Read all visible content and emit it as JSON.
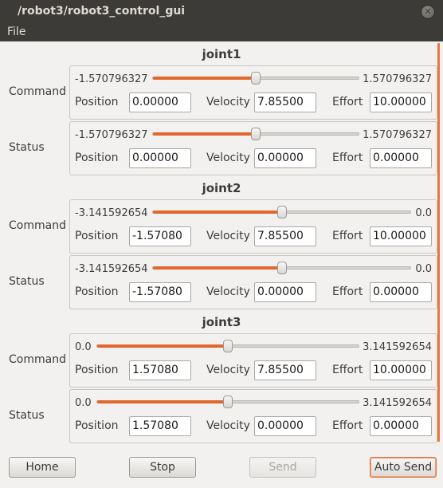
{
  "window": {
    "title": "/robot3/robot3_control_gui",
    "close_icon": "close-icon"
  },
  "menu": {
    "file": "File"
  },
  "labels": {
    "command": "Command",
    "status": "Status",
    "position": "Position",
    "velocity": "Velocity",
    "effort": "Effort"
  },
  "joints": [
    {
      "name": "joint1",
      "command": {
        "min": "-1.570796327",
        "max": "1.570796327",
        "slider_fraction": 0.5,
        "position": "0.00000",
        "velocity": "7.85500",
        "effort": "10.00000"
      },
      "status": {
        "min": "-1.570796327",
        "max": "1.570796327",
        "slider_fraction": 0.5,
        "position": "0.00000",
        "velocity": "0.00000",
        "effort": "0.00000"
      }
    },
    {
      "name": "joint2",
      "command": {
        "min": "-3.141592654",
        "max": "0.0",
        "slider_fraction": 0.5,
        "position": "-1.57080",
        "velocity": "7.85500",
        "effort": "10.00000"
      },
      "status": {
        "min": "-3.141592654",
        "max": "0.0",
        "slider_fraction": 0.5,
        "position": "-1.57080",
        "velocity": "0.00000",
        "effort": "0.00000"
      }
    },
    {
      "name": "joint3",
      "command": {
        "min": "0.0",
        "max": "3.141592654",
        "slider_fraction": 0.5,
        "position": "1.57080",
        "velocity": "7.85500",
        "effort": "10.00000"
      },
      "status": {
        "min": "0.0",
        "max": "3.141592654",
        "slider_fraction": 0.5,
        "position": "1.57080",
        "velocity": "0.00000",
        "effort": "0.00000"
      }
    }
  ],
  "buttons": {
    "home": "Home",
    "stop": "Stop",
    "send": "Send",
    "auto_send": "Auto Send",
    "send_enabled": false,
    "auto_send_active": true
  },
  "colors": {
    "accent": "#e2672d",
    "titlebar": "#3c3b37",
    "background": "#f2f1f0"
  }
}
